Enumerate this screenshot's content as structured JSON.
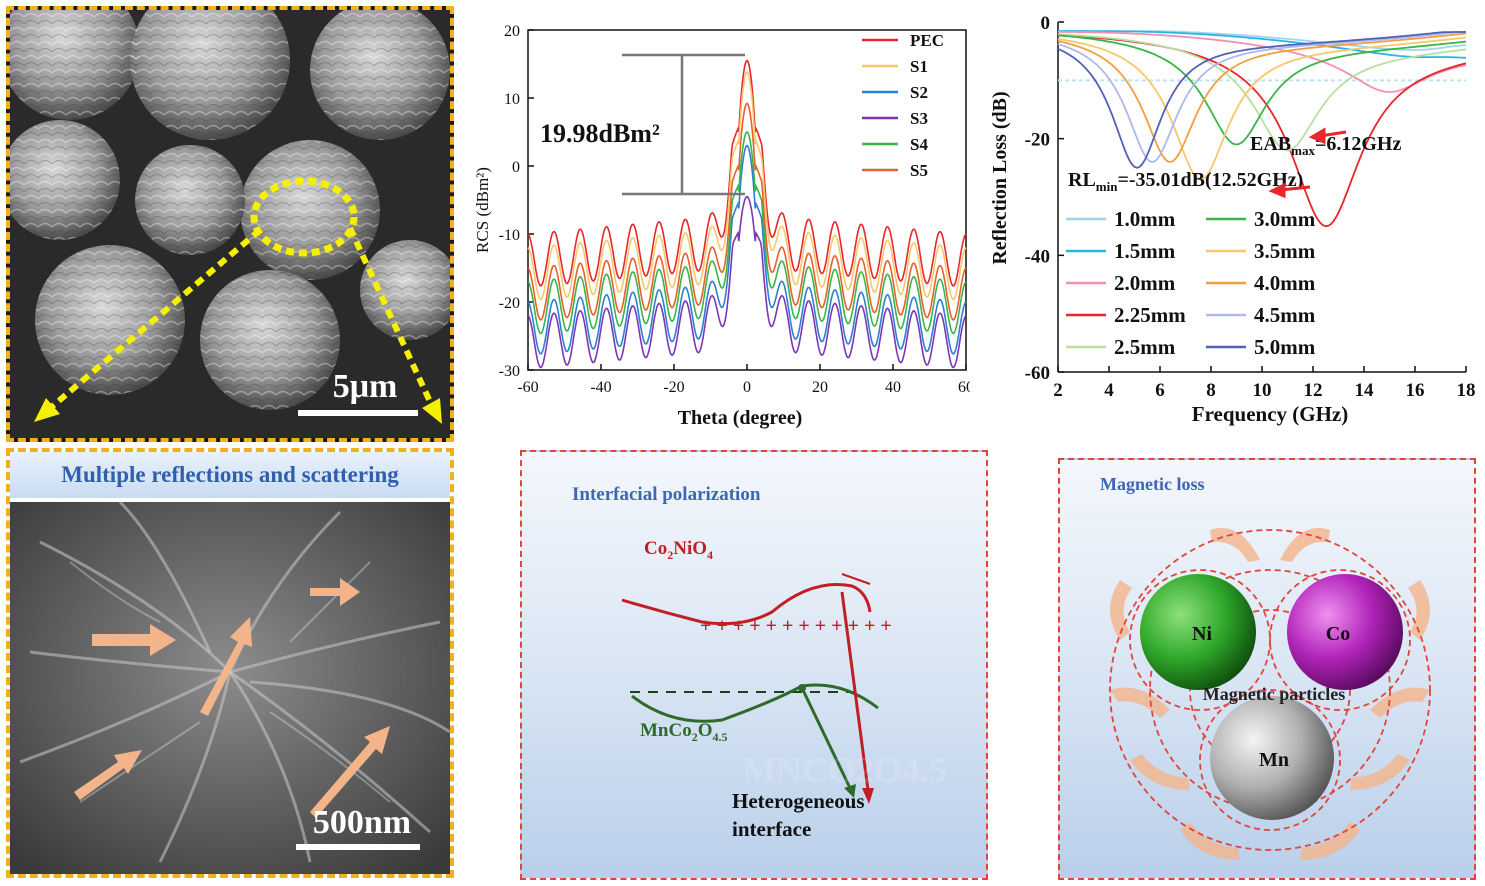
{
  "sem_top": {
    "scale_label": "5μm"
  },
  "sem_bottom": {
    "banner": "Multiple reflections and scattering",
    "scale_label": "500nm"
  },
  "rcs_chart": {
    "ylabel": "RCS (dBm²)",
    "xlabel": "Theta (degree)",
    "annotation": "19.98dBm²",
    "legend": [
      "PEC",
      "S1",
      "S2",
      "S3",
      "S4",
      "S5"
    ],
    "colors": [
      "#e8262b",
      "#f7c86a",
      "#2d7fd1",
      "#7c36b8",
      "#39b54a",
      "#e8602b"
    ]
  },
  "rl_chart": {
    "ylabel": "Reflection Loss (dB)",
    "xlabel": "Frequency (GHz)",
    "eab_label": "EAB",
    "eab_sub": "max",
    "eab_value": "=6.12GHz",
    "rl_label": "RL",
    "rl_sub": "min",
    "rl_value": "=-35.01dB(12.52GHz)",
    "legend_left": [
      "1.0mm",
      "1.5mm",
      "2.0mm",
      "2.25mm",
      "2.5mm"
    ],
    "legend_right": [
      "3.0mm",
      "3.5mm",
      "4.0mm",
      "4.5mm",
      "5.0mm"
    ],
    "colors_left": [
      "#9fd6ee",
      "#2bb5e6",
      "#f48fb1",
      "#e8262b",
      "#b7e0a0"
    ],
    "colors_right": [
      "#39b54a",
      "#f7c86a",
      "#f0a040",
      "#b0b8e8",
      "#5060b8"
    ]
  },
  "chart_data": [
    {
      "type": "line",
      "xlabel": "Theta (degree)",
      "ylabel": "RCS (dBm²)",
      "xlim": [
        -60,
        60
      ],
      "ylim": [
        -30,
        20
      ],
      "xticks": [
        -60,
        -40,
        -20,
        0,
        20,
        40,
        60
      ],
      "yticks": [
        -30,
        -20,
        -10,
        0,
        10,
        20
      ],
      "annotation": "19.98dBm²",
      "series": [
        {
          "name": "PEC",
          "peak": 15.5,
          "sidelobe": -12
        },
        {
          "name": "S1",
          "peak": 13.8,
          "sidelobe": -14
        },
        {
          "name": "S2",
          "peak": 3.0,
          "sidelobe": -22
        },
        {
          "name": "S3",
          "peak": -4.5,
          "sidelobe": -24
        },
        {
          "name": "S4",
          "peak": 5.0,
          "sidelobe": -19
        },
        {
          "name": "S5",
          "peak": 9.2,
          "sidelobe": -17
        }
      ]
    },
    {
      "type": "line",
      "xlabel": "Frequency (GHz)",
      "ylabel": "Reflection Loss (dB)",
      "xlim": [
        2,
        18
      ],
      "ylim": [
        -60,
        0
      ],
      "xticks": [
        2,
        4,
        6,
        8,
        10,
        12,
        14,
        16,
        18
      ],
      "yticks": [
        0,
        -20,
        -40,
        -60
      ],
      "series": [
        {
          "name": "1.0mm",
          "min_freq": 18,
          "min_rl": -4
        },
        {
          "name": "1.5mm",
          "min_freq": 17,
          "min_rl": -6
        },
        {
          "name": "2.0mm",
          "min_freq": 15,
          "min_rl": -12
        },
        {
          "name": "2.25mm",
          "min_freq": 12.52,
          "min_rl": -35.01
        },
        {
          "name": "2.5mm",
          "min_freq": 11,
          "min_rl": -22
        },
        {
          "name": "3.0mm",
          "min_freq": 9,
          "min_rl": -21
        },
        {
          "name": "3.5mm",
          "min_freq": 7.6,
          "min_rl": -27
        },
        {
          "name": "4.0mm",
          "min_freq": 6.4,
          "min_rl": -24
        },
        {
          "name": "4.5mm",
          "min_freq": 5.7,
          "min_rl": -24
        },
        {
          "name": "5.0mm",
          "min_freq": 5.1,
          "min_rl": -25
        }
      ]
    }
  ],
  "interfacial": {
    "title": "Interfacial polarization",
    "co_label": "Co",
    "co_sub1": "2",
    "co_mid": "NiO",
    "co_sub2": "4",
    "mn_label": "MnCo",
    "mn_sub1": "2",
    "mn_mid": "O",
    "mn_sub2": "4.5",
    "het_line1": "Heterogeneous",
    "het_line2": "interface"
  },
  "magnetic": {
    "title": "Magnetic loss",
    "ni": "Ni",
    "co": "Co",
    "mn": "Mn",
    "particles_label": "Magnetic particles"
  }
}
